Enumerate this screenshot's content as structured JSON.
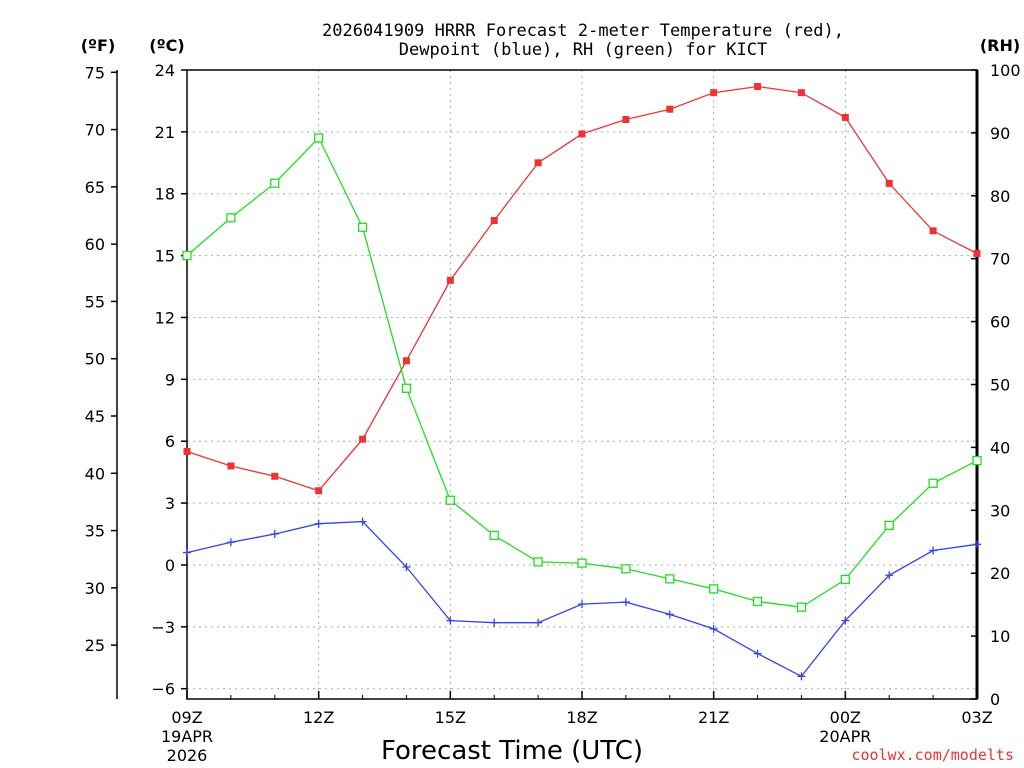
{
  "chart_data": {
    "type": "line",
    "title_line1": "2026041909 HRRR Forecast 2-meter Temperature (red),",
    "title_line2": "Dewpoint (blue), RH (green) for KICT",
    "unit_f": "(ºF)",
    "unit_c": "(ºC)",
    "unit_rh": "(RH)",
    "xlabel": "Forecast Time (UTC)",
    "credit": "coolwx.com/modelts",
    "x_ticks": [
      "09Z",
      "12Z",
      "15Z",
      "18Z",
      "21Z",
      "00Z",
      "03Z"
    ],
    "x_date_labels": [
      {
        "tick": "09Z",
        "line1": "19APR",
        "line2": "2026"
      },
      {
        "tick": "00Z",
        "line1": "20APR",
        "line2": ""
      }
    ],
    "hours": [
      "09Z",
      "10Z",
      "11Z",
      "12Z",
      "13Z",
      "14Z",
      "15Z",
      "16Z",
      "17Z",
      "18Z",
      "19Z",
      "20Z",
      "21Z",
      "22Z",
      "23Z",
      "00Z",
      "01Z",
      "02Z",
      "03Z"
    ],
    "c_ticks": [
      24,
      21,
      18,
      15,
      12,
      9,
      6,
      3,
      0,
      -3,
      -6
    ],
    "c_tick_labels": [
      "24",
      "21",
      "18",
      "15",
      "12",
      "9",
      "6",
      "3",
      "0",
      "−3",
      "−6"
    ],
    "f_ticks": [
      75,
      70,
      65,
      60,
      55,
      50,
      45,
      40,
      35,
      30,
      25
    ],
    "rh_ticks": [
      100,
      90,
      80,
      70,
      60,
      50,
      40,
      30,
      20,
      10,
      0
    ],
    "c_range": [
      -6.5,
      24
    ],
    "rh_range": [
      0,
      100
    ],
    "grid": true,
    "colors": {
      "temperature": "#ee3333",
      "dewpoint": "#3344ee",
      "rh": "#22dd22",
      "grid": "#aaaaaa",
      "credit": "#ee3333"
    },
    "series": [
      {
        "name": "Temperature",
        "units": "C",
        "marker": "filled-square",
        "values": [
          5.5,
          4.8,
          4.3,
          3.6,
          6.1,
          9.9,
          13.8,
          16.7,
          19.5,
          20.9,
          21.6,
          22.1,
          22.9,
          23.2,
          22.9,
          21.7,
          18.5,
          16.2,
          15.1
        ]
      },
      {
        "name": "Dewpoint",
        "units": "C",
        "marker": "plus",
        "values": [
          0.6,
          1.1,
          1.5,
          2.0,
          2.1,
          -0.1,
          -2.7,
          -2.8,
          -2.8,
          -1.9,
          -1.8,
          -2.4,
          -3.1,
          -4.3,
          -5.4,
          -2.7,
          -0.5,
          0.7,
          1.0
        ]
      },
      {
        "name": "RH",
        "units": "%",
        "marker": "open-square",
        "values": [
          70.5,
          76.5,
          82.0,
          89.2,
          75.0,
          49.4,
          31.6,
          26.0,
          21.8,
          21.6,
          20.7,
          19.1,
          17.5,
          15.5,
          14.6,
          19.0,
          27.6,
          34.3,
          37.9
        ]
      }
    ]
  }
}
